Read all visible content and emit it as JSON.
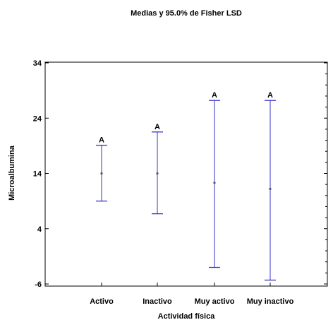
{
  "chart_data": {
    "type": "error_bar",
    "title": "Medias y 95.0% de Fisher LSD",
    "xlabel": "Actividad física",
    "ylabel": "Microalbumina",
    "ylim": [
      -7,
      34
    ],
    "yticks": [
      -6,
      4,
      14,
      24,
      34
    ],
    "categories": [
      "Activo",
      "Inactivo",
      "Muy activo",
      "Muy inactivo"
    ],
    "means": [
      14.0,
      14.0,
      12.3,
      11.2
    ],
    "lower": [
      9.0,
      6.7,
      -3.0,
      -5.3
    ],
    "upper": [
      19.1,
      21.5,
      27.2,
      27.2
    ],
    "group_labels": [
      "A",
      "A",
      "A",
      "A"
    ],
    "grid": false,
    "colors": {
      "interval": "#3333cc",
      "mean": "#555555",
      "axis": "#000000"
    }
  }
}
